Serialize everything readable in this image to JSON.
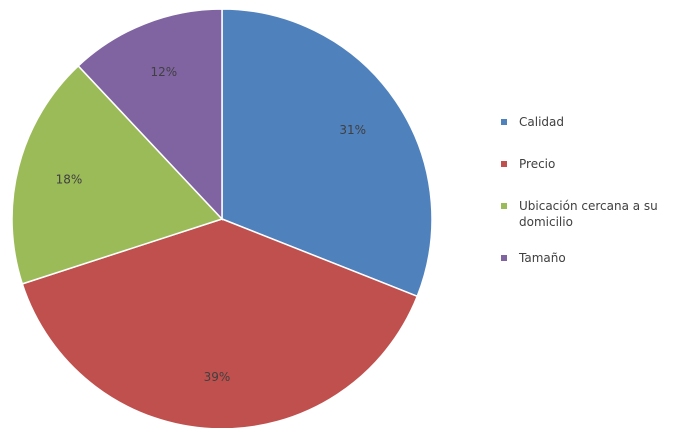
{
  "chart_data": {
    "type": "pie",
    "title": "",
    "categories": [
      "Calidad",
      "Precio",
      "Ubicación cercana a su domicilio",
      "Tamaño"
    ],
    "values": [
      31,
      39,
      18,
      12
    ],
    "labels": [
      "31%",
      "39%",
      "18%",
      "12%"
    ],
    "colors": [
      "#4f81bd",
      "#c0504d",
      "#9bbb59",
      "#8064a2"
    ],
    "start_angle": "top",
    "direction": "clockwise",
    "legend_position": "right"
  },
  "legend": {
    "items": [
      {
        "label": "Calidad",
        "color": "#4f81bd"
      },
      {
        "label": "Precio",
        "color": "#c0504d"
      },
      {
        "label": "Ubicación cercana a su domicilio",
        "color": "#9bbb59"
      },
      {
        "label": "Tamaño",
        "color": "#8064a2"
      }
    ]
  }
}
